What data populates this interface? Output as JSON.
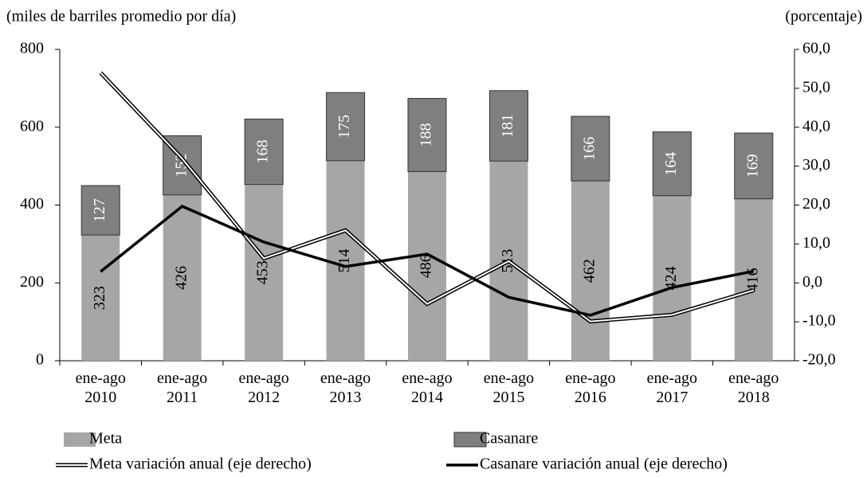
{
  "chart_data": {
    "type": "bar_line",
    "y_label": "(miles de barriles promedio por día)",
    "y2_label": "(porcentaje)",
    "categories": [
      "ene-ago 2010",
      "ene-ago 2011",
      "ene-ago 2012",
      "ene-ago 2013",
      "ene-ago 2014",
      "ene-ago 2015",
      "ene-ago 2016",
      "ene-ago 2017",
      "ene-ago 2018"
    ],
    "series": [
      {
        "name": "Meta",
        "kind": "bar",
        "color": "#a6a6a6",
        "values": [
          323,
          426,
          453,
          514,
          486,
          513,
          462,
          424,
          416
        ]
      },
      {
        "name": "Casanare",
        "kind": "bar",
        "color": "#7f7f7f",
        "values": [
          127,
          152,
          168,
          175,
          188,
          181,
          166,
          164,
          169
        ]
      },
      {
        "name": "Meta variación anual (eje derecho)",
        "kind": "line",
        "style": "double",
        "color": "#000000",
        "axis": "y2",
        "values": [
          54,
          31.9,
          6.3,
          13.5,
          -5.4,
          5.6,
          -9.9,
          -8.2,
          -1.9
        ]
      },
      {
        "name": "Casanare variación anual (eje derecho)",
        "kind": "line",
        "style": "solid",
        "color": "#000000",
        "axis": "y2",
        "values": [
          2.9,
          19.7,
          10.5,
          4.2,
          7.4,
          -3.7,
          -8.3,
          -1.2,
          3.0
        ]
      }
    ],
    "ylim": [
      0,
      800
    ],
    "yticks": [
      0,
      200,
      400,
      600,
      800
    ],
    "y2lim": [
      -20,
      60
    ],
    "y2ticks": [
      {
        "value": -20,
        "label": "-20,0"
      },
      {
        "value": -10,
        "label": "-10,0"
      },
      {
        "value": 0,
        "label": "0,0"
      },
      {
        "value": 10,
        "label": "10,0"
      },
      {
        "value": 20,
        "label": "20,0"
      },
      {
        "value": 30,
        "label": "30,0"
      },
      {
        "value": 40,
        "label": "40,0"
      },
      {
        "value": 50,
        "label": "50,0"
      },
      {
        "value": 60,
        "label": "60,0"
      }
    ]
  }
}
